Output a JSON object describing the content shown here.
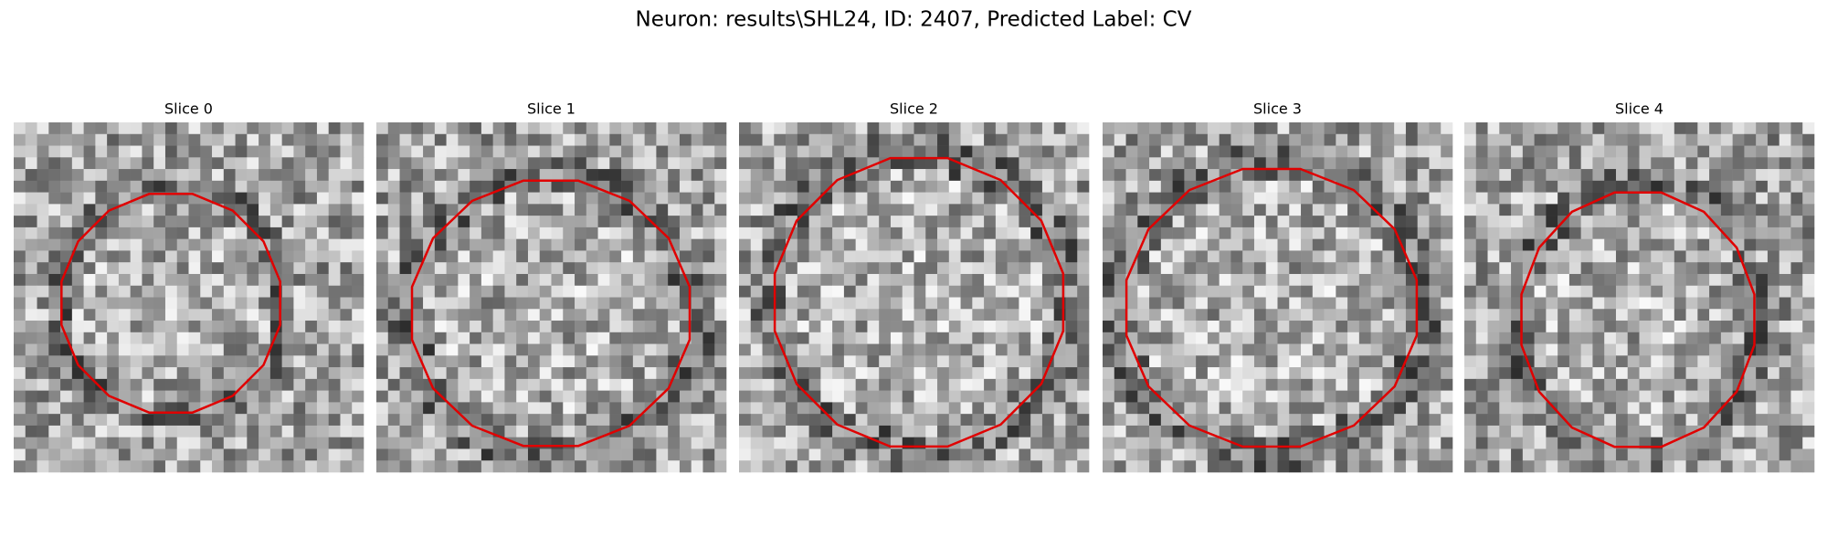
{
  "title": "Neuron: results\\SHL24, ID: 2407, Predicted Label: CV",
  "panels": [
    {
      "title": "Slice 0"
    },
    {
      "title": "Slice 1"
    },
    {
      "title": "Slice 2"
    },
    {
      "title": "Slice 3"
    },
    {
      "title": "Slice 4"
    }
  ]
}
